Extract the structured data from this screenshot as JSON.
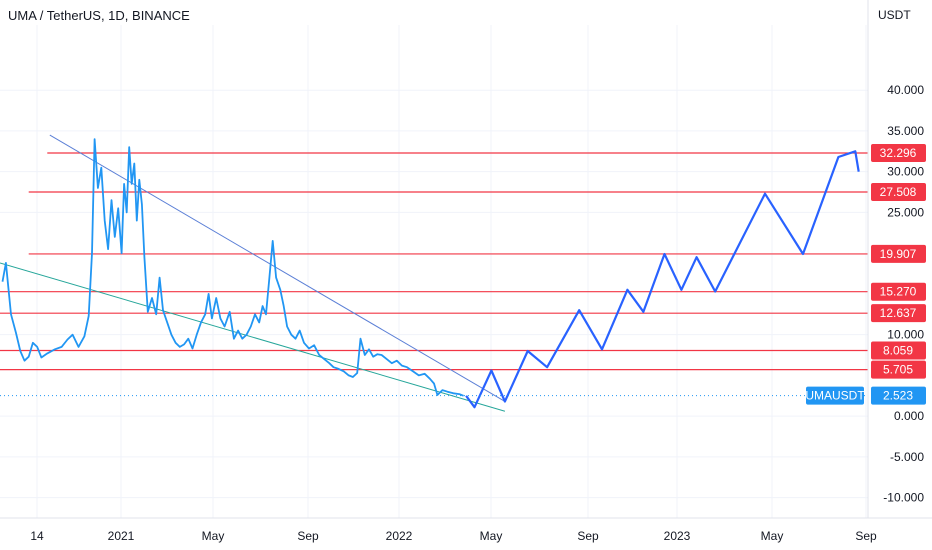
{
  "header": {
    "title": "UMA / TetherUS, 1D, BINANCE",
    "currency": "USDT"
  },
  "colors": {
    "price_line": "#2196f3",
    "projection": "#2962ff",
    "level_line": "#f23645",
    "trend_upper": "#5b7fd6",
    "trend_lower": "#26a69a",
    "current_price": "#2196f3",
    "grid": "#f0f3fa"
  },
  "chart_data": {
    "type": "line",
    "title": "UMA / TetherUS, 1D, BINANCE",
    "ylim": [
      -12.5,
      48
    ],
    "xlim": [
      "2020-12-07",
      "2023-10-01"
    ],
    "grid": true,
    "y_ticks": [
      "40.000",
      "35.000",
      "30.000",
      "25.000",
      "10.000",
      "0.000",
      "-5.000",
      "-10.000"
    ],
    "x_ticks": [
      "14",
      "2021",
      "May",
      "Sep",
      "2022",
      "May",
      "Sep",
      "2023",
      "May",
      "Sep"
    ],
    "current_price": {
      "symbol": "UMAUSDT",
      "value": 2.523,
      "label": "2.523"
    },
    "levels": [
      {
        "label": "32.296",
        "value": 32.296,
        "start": "2021-02-01"
      },
      {
        "label": "27.508",
        "value": 27.508,
        "start": "2021-01-10"
      },
      {
        "label": "19.907",
        "value": 19.907,
        "start": "2021-01-10"
      },
      {
        "label": "15.270",
        "value": 15.27,
        "start": "2020-12-07"
      },
      {
        "label": "12.637",
        "value": 12.637,
        "start": "2020-12-07"
      },
      {
        "label": "8.059",
        "value": 8.059,
        "start": "2020-12-07"
      },
      {
        "label": "5.705",
        "value": 5.705,
        "start": "2020-12-07"
      }
    ],
    "trendlines": [
      {
        "name": "upper",
        "points": [
          [
            "2021-02-04",
            34.5
          ],
          [
            "2022-07-28",
            1.8
          ]
        ]
      },
      {
        "name": "lower",
        "points": [
          [
            "2020-12-07",
            18.8
          ],
          [
            "2022-07-28",
            0.6
          ]
        ]
      }
    ],
    "series": [
      {
        "name": "price",
        "points": [
          [
            "2020-12-10",
            16.5
          ],
          [
            "2020-12-14",
            18.8
          ],
          [
            "2020-12-20",
            12.5
          ],
          [
            "2020-12-26",
            10.2
          ],
          [
            "2020-12-31",
            8.0
          ],
          [
            "2021-01-05",
            6.8
          ],
          [
            "2021-01-10",
            7.3
          ],
          [
            "2021-01-15",
            9.0
          ],
          [
            "2021-01-20",
            8.5
          ],
          [
            "2021-01-25",
            7.2
          ],
          [
            "2021-02-01",
            7.7
          ],
          [
            "2021-02-10",
            8.2
          ],
          [
            "2021-02-18",
            8.5
          ],
          [
            "2021-02-25",
            9.4
          ],
          [
            "2021-03-03",
            10.0
          ],
          [
            "2021-03-10",
            8.5
          ],
          [
            "2021-03-17",
            9.8
          ],
          [
            "2021-03-22",
            12.3
          ],
          [
            "2021-03-26",
            20.0
          ],
          [
            "2021-03-29",
            34.0
          ],
          [
            "2021-04-02",
            28.0
          ],
          [
            "2021-04-06",
            30.5
          ],
          [
            "2021-04-10",
            24.0
          ],
          [
            "2021-04-14",
            20.5
          ],
          [
            "2021-04-18",
            26.5
          ],
          [
            "2021-04-22",
            22.0
          ],
          [
            "2021-04-26",
            25.5
          ],
          [
            "2021-04-30",
            20.0
          ],
          [
            "2021-05-03",
            28.5
          ],
          [
            "2021-05-06",
            25.0
          ],
          [
            "2021-05-09",
            33.0
          ],
          [
            "2021-05-12",
            28.5
          ],
          [
            "2021-05-15",
            31.0
          ],
          [
            "2021-05-18",
            24.0
          ],
          [
            "2021-05-21",
            29.0
          ],
          [
            "2021-05-24",
            26.0
          ],
          [
            "2021-05-27",
            19.5
          ],
          [
            "2021-05-31",
            12.8
          ],
          [
            "2021-06-05",
            14.5
          ],
          [
            "2021-06-10",
            12.5
          ],
          [
            "2021-06-14",
            17.0
          ],
          [
            "2021-06-18",
            13.0
          ],
          [
            "2021-06-23",
            11.5
          ],
          [
            "2021-06-28",
            10.0
          ],
          [
            "2021-07-03",
            9.0
          ],
          [
            "2021-07-08",
            8.5
          ],
          [
            "2021-07-13",
            8.8
          ],
          [
            "2021-07-18",
            9.5
          ],
          [
            "2021-07-23",
            8.3
          ],
          [
            "2021-07-28",
            10.0
          ],
          [
            "2021-08-02",
            11.5
          ],
          [
            "2021-08-07",
            12.5
          ],
          [
            "2021-08-11",
            15.0
          ],
          [
            "2021-08-15",
            12.0
          ],
          [
            "2021-08-20",
            14.5
          ],
          [
            "2021-08-25",
            12.0
          ],
          [
            "2021-08-30",
            11.0
          ],
          [
            "2021-09-05",
            12.8
          ],
          [
            "2021-09-10",
            9.5
          ],
          [
            "2021-09-15",
            10.5
          ],
          [
            "2021-09-20",
            9.5
          ],
          [
            "2021-09-25",
            10.0
          ],
          [
            "2021-09-30",
            11.0
          ],
          [
            "2021-10-05",
            12.5
          ],
          [
            "2021-10-10",
            11.5
          ],
          [
            "2021-10-14",
            13.5
          ],
          [
            "2021-10-18",
            12.5
          ],
          [
            "2021-10-22",
            17.0
          ],
          [
            "2021-10-26",
            21.5
          ],
          [
            "2021-10-30",
            17.0
          ],
          [
            "2021-11-04",
            15.5
          ],
          [
            "2021-11-08",
            13.5
          ],
          [
            "2021-11-12",
            11.0
          ],
          [
            "2021-11-17",
            10.0
          ],
          [
            "2021-11-22",
            9.5
          ],
          [
            "2021-11-27",
            10.5
          ],
          [
            "2021-12-02",
            9.0
          ],
          [
            "2021-12-08",
            8.3
          ],
          [
            "2021-12-14",
            8.7
          ],
          [
            "2021-12-20",
            7.5
          ],
          [
            "2021-12-26",
            7.0
          ],
          [
            "2022-01-01",
            6.5
          ],
          [
            "2022-01-06",
            6.0
          ],
          [
            "2022-01-12",
            5.8
          ],
          [
            "2022-01-18",
            5.5
          ],
          [
            "2022-01-24",
            5.0
          ],
          [
            "2022-01-29",
            4.8
          ],
          [
            "2022-02-03",
            5.3
          ],
          [
            "2022-02-07",
            9.5
          ],
          [
            "2022-02-12",
            7.5
          ],
          [
            "2022-02-17",
            8.2
          ],
          [
            "2022-02-22",
            7.3
          ],
          [
            "2022-02-27",
            7.6
          ],
          [
            "2022-03-04",
            7.5
          ],
          [
            "2022-03-10",
            7.0
          ],
          [
            "2022-03-16",
            6.5
          ],
          [
            "2022-03-22",
            6.8
          ],
          [
            "2022-03-28",
            6.2
          ],
          [
            "2022-04-03",
            6.0
          ],
          [
            "2022-04-10",
            5.5
          ],
          [
            "2022-04-17",
            5.0
          ],
          [
            "2022-04-24",
            5.2
          ],
          [
            "2022-04-30",
            4.6
          ],
          [
            "2022-05-05",
            4.0
          ],
          [
            "2022-05-09",
            2.6
          ],
          [
            "2022-05-15",
            3.2
          ],
          [
            "2022-05-21",
            3.0
          ],
          [
            "2022-05-28",
            2.8
          ],
          [
            "2022-06-04",
            2.7
          ],
          [
            "2022-06-09",
            2.5
          ]
        ]
      },
      {
        "name": "projection",
        "points": [
          [
            "2022-06-12",
            2.5
          ],
          [
            "2022-06-22",
            1.1
          ],
          [
            "2022-07-12",
            5.6
          ],
          [
            "2022-07-28",
            1.8
          ],
          [
            "2022-08-24",
            8.0
          ],
          [
            "2022-09-16",
            6.0
          ],
          [
            "2022-10-24",
            13.0
          ],
          [
            "2022-11-20",
            8.2
          ],
          [
            "2022-12-20",
            15.5
          ],
          [
            "2023-01-08",
            12.8
          ],
          [
            "2023-02-02",
            19.9
          ],
          [
            "2023-02-22",
            15.5
          ],
          [
            "2023-03-12",
            19.5
          ],
          [
            "2023-04-03",
            15.3
          ],
          [
            "2023-06-01",
            27.3
          ],
          [
            "2023-07-16",
            19.9
          ],
          [
            "2023-08-27",
            31.8
          ],
          [
            "2023-09-16",
            32.5
          ],
          [
            "2023-09-20",
            30.0
          ]
        ]
      }
    ]
  }
}
